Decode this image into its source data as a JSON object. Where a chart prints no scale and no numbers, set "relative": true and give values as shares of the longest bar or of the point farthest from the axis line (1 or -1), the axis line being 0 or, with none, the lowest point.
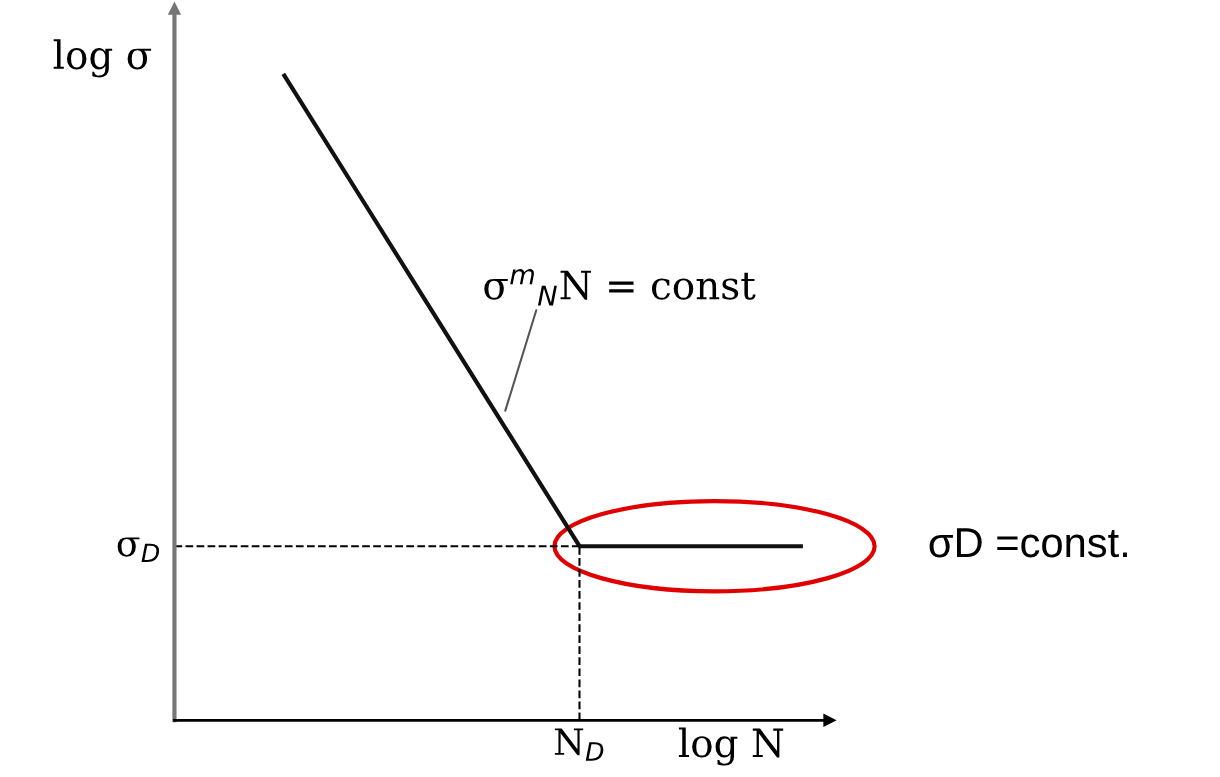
{
  "chart_data": {
    "type": "line",
    "relative": true,
    "categories": [
      null,
      null,
      null,
      null,
      null,
      null,
      null,
      null
    ],
    "series": [
      {
        "color": "#111111",
        "values": [
          1.0,
          0.8175,
          0.635,
          0.4525,
          0.27,
          0.27,
          0.27,
          0.27
        ]
      }
    ],
    "xlabel": "log N",
    "ylabel": "log σ",
    "marker": "none",
    "line_style": "solid",
    "ref_lines": [
      {
        "axis": "y",
        "value": 0.27,
        "label": "σ$_{D}$",
        "line_style": "dashed",
        "color": "#000000"
      }
    ],
    "annotations": [
      "σ$^{m}$$_{N}$N = const",
      "σD =const.",
      "N$_{D}$"
    ]
  }
}
